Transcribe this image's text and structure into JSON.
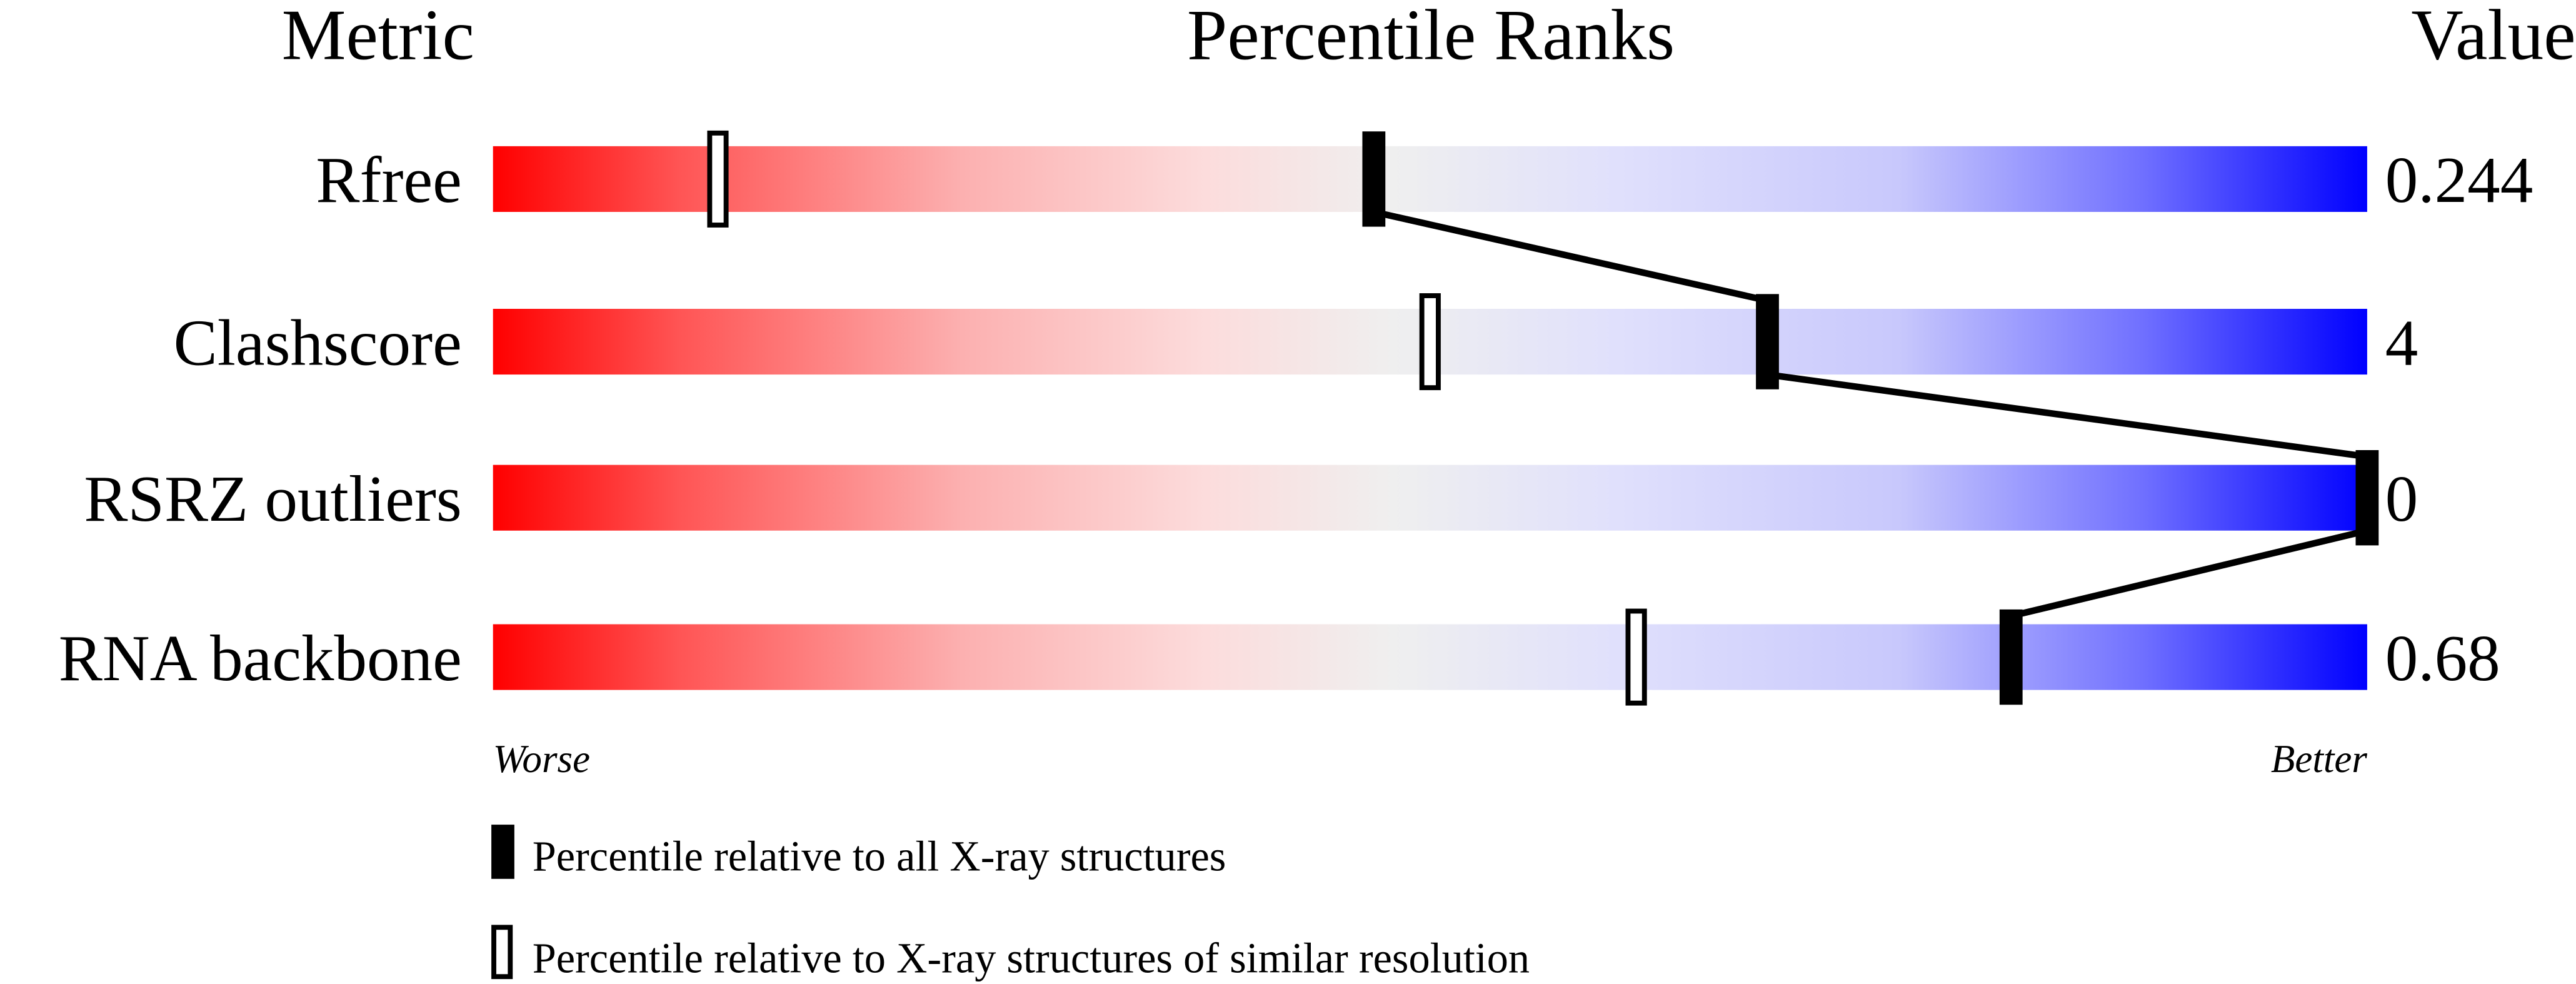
{
  "chart_data": {
    "type": "bar",
    "headers": {
      "metric": "Metric",
      "ranks": "Percentile Ranks",
      "value": "Value"
    },
    "xlim": [
      0,
      100
    ],
    "rows": [
      {
        "metric": "Rfree",
        "value": "0.244",
        "percentile_all": 47,
        "percentile_similar": 12
      },
      {
        "metric": "Clashscore",
        "value": "4",
        "percentile_all": 68,
        "percentile_similar": 50
      },
      {
        "metric": "RSRZ outliers",
        "value": "0",
        "percentile_all": 100,
        "percentile_similar": null
      },
      {
        "metric": "RNA backbone",
        "value": "0.68",
        "percentile_all": 81,
        "percentile_similar": 61
      }
    ],
    "scale_left": "Worse",
    "scale_right": "Better",
    "legend": {
      "all": "Percentile relative to all X-ray structures",
      "similar": "Percentile relative to X-ray structures of similar resolution"
    },
    "colors": {
      "worse": "#ff0000",
      "middle": "#efefef",
      "better": "#0000ff",
      "marker": "#000000"
    }
  }
}
